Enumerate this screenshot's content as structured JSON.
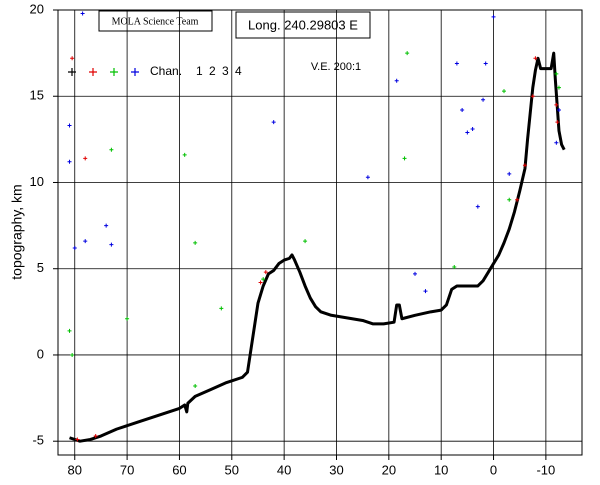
{
  "chart_data": {
    "type": "scatter",
    "title": "Long. 240.29803 E",
    "subtitle": "V.E. 200:1",
    "credit": "MOLA Science Team",
    "y_label": "topography, km",
    "legend_label": "Chan.",
    "xlim": [
      83.2,
      -16.9
    ],
    "ylim": [
      -5.8,
      20
    ],
    "xticks": [
      80,
      70,
      60,
      50,
      40,
      30,
      20,
      10,
      0,
      -10
    ],
    "yticks": [
      -5,
      0,
      5,
      10,
      15,
      20
    ],
    "grid": true,
    "series": [
      {
        "name": "1",
        "color": "#000000",
        "mode": "line",
        "x": [
          81,
          79,
          77,
          75,
          72,
          68,
          64,
          60,
          59,
          58.6,
          58.4,
          57,
          54,
          51,
          48,
          47,
          46.5,
          45.5,
          45,
          44,
          43,
          42,
          41,
          40,
          39,
          38.5,
          38,
          37,
          36,
          35,
          34,
          33,
          31,
          29,
          27,
          25,
          23,
          21,
          19,
          18.5,
          18,
          17.5,
          15,
          12,
          10,
          9,
          8,
          7,
          5,
          3,
          2,
          1,
          0,
          -1,
          -2,
          -3,
          -4,
          -5,
          -6,
          -6.5,
          -7,
          -7.5,
          -8,
          -8.5,
          -9,
          -10,
          -11,
          -11.5,
          -11.8,
          -12.5,
          -13,
          -13.5
        ],
        "values": [
          -4.8,
          -5.0,
          -4.9,
          -4.7,
          -4.3,
          -3.9,
          -3.5,
          -3.1,
          -2.9,
          -3.3,
          -2.8,
          -2.4,
          -2.0,
          -1.6,
          -1.3,
          -1.0,
          0,
          2,
          3,
          4,
          4.7,
          4.9,
          5.3,
          5.5,
          5.6,
          5.8,
          5.5,
          4.8,
          4.0,
          3.3,
          2.8,
          2.5,
          2.3,
          2.2,
          2.1,
          2.0,
          1.8,
          1.8,
          1.9,
          2.9,
          2.9,
          2.1,
          2.3,
          2.5,
          2.6,
          2.9,
          3.8,
          4.0,
          4.0,
          4.0,
          4.3,
          4.8,
          5.3,
          5.8,
          6.5,
          7.3,
          8.3,
          9.5,
          10.8,
          12.5,
          14,
          15.5,
          16.5,
          17.2,
          16.6,
          16.6,
          16.6,
          17.5,
          16.0,
          13,
          12.2,
          11.9
        ]
      },
      {
        "name": "2",
        "color": "#e00000",
        "mode": "markers",
        "x": [
          80.5,
          78,
          44.5,
          43.5,
          76,
          79.5,
          -4.5,
          -8,
          -12,
          -12.2,
          -6,
          -7.5
        ],
        "values": [
          17.2,
          11.4,
          4.2,
          4.8,
          -4.7,
          -4.9,
          9.0,
          17.2,
          14.5,
          13.5,
          11,
          15
        ]
      },
      {
        "name": "3",
        "color": "#00c000",
        "mode": "markers",
        "x": [
          81,
          80.5,
          73,
          70,
          59,
          57,
          57,
          52,
          44,
          36,
          17,
          16.5,
          7.5,
          -2,
          -12,
          -3,
          -12.5
        ],
        "values": [
          1.4,
          0.0,
          11.9,
          2.1,
          11.6,
          6.5,
          -1.8,
          2.7,
          4.4,
          6.6,
          11.4,
          17.5,
          5.1,
          15.3,
          16.3,
          9.0,
          15.5
        ]
      },
      {
        "name": "4",
        "color": "#0000e0",
        "mode": "markers",
        "x": [
          78.5,
          81,
          81,
          80,
          78,
          74,
          73,
          42,
          24,
          18.5,
          15,
          13,
          7,
          6,
          5,
          4,
          3,
          2,
          1.5,
          0,
          -3,
          -12,
          -12.5
        ],
        "values": [
          19.8,
          13.3,
          11.2,
          6.2,
          6.6,
          7.5,
          6.4,
          13.5,
          10.3,
          15.9,
          4.7,
          3.7,
          16.9,
          14.2,
          12.9,
          13.1,
          8.6,
          14.8,
          16.9,
          19.6,
          10.5,
          12.3,
          14.2
        ]
      }
    ]
  }
}
